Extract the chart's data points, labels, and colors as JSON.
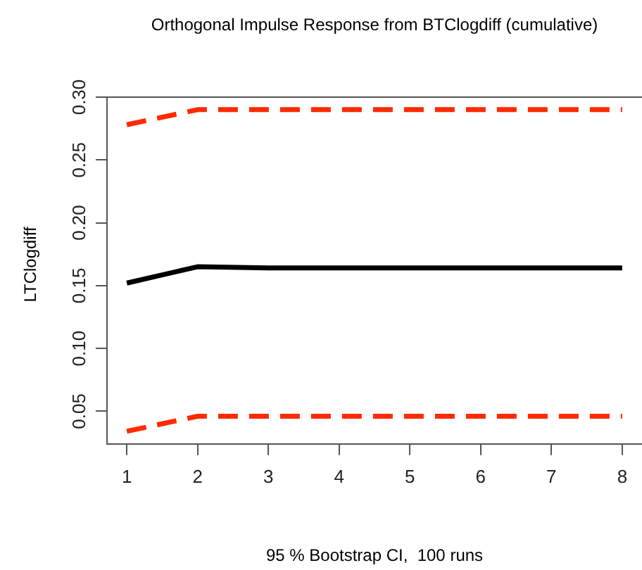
{
  "chart_data": {
    "type": "line",
    "title": "Orthogonal Impulse Response from BTClogdiff (cumulative)",
    "xlabel": "95 % Bootstrap CI,  100 runs",
    "ylabel": "LTClogdiff",
    "x": [
      1,
      2,
      3,
      4,
      5,
      6,
      7,
      8
    ],
    "series": [
      {
        "color": "#000000",
        "line_style": "solid",
        "values": [
          0.152,
          0.165,
          0.164,
          0.164,
          0.164,
          0.164,
          0.164,
          0.164
        ]
      },
      {
        "color": "#ff2a00",
        "line_style": "dashed",
        "values": [
          0.278,
          0.29,
          0.29,
          0.29,
          0.29,
          0.29,
          0.29,
          0.29
        ]
      },
      {
        "color": "#ff2a00",
        "line_style": "dashed",
        "values": [
          0.034,
          0.046,
          0.046,
          0.046,
          0.046,
          0.046,
          0.046,
          0.046
        ]
      }
    ],
    "xlim": [
      0.72,
      8.28
    ],
    "ylim": [
      0.024,
      0.3
    ],
    "xticks": [
      1,
      2,
      3,
      4,
      5,
      6,
      7,
      8
    ],
    "yticks": [
      {
        "value": 0.05,
        "label": "0.05"
      },
      {
        "value": 0.1,
        "label": "0.10"
      },
      {
        "value": 0.15,
        "label": "0.15"
      },
      {
        "value": 0.2,
        "label": "0.20"
      },
      {
        "value": 0.25,
        "label": "0.25"
      },
      {
        "value": 0.3,
        "label": "0.30"
      }
    ],
    "grid": false,
    "legend": false,
    "marker": "none"
  }
}
